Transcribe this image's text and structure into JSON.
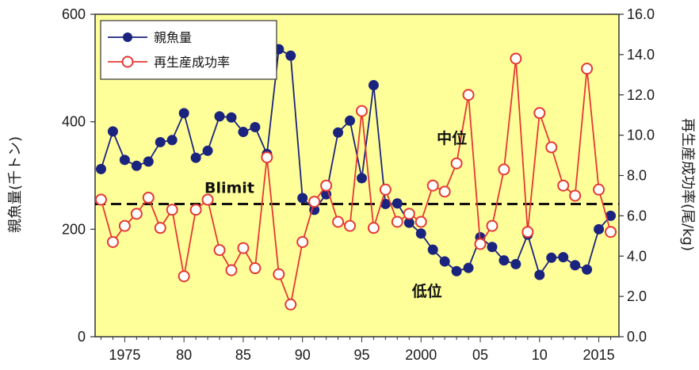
{
  "chart_data": {
    "type": "line",
    "title": "",
    "x_ticks": [
      "1975",
      "80",
      "85",
      "90",
      "95",
      "2000",
      "05",
      "10",
      "2015"
    ],
    "x_tick_values": [
      1975,
      1980,
      1985,
      1990,
      1995,
      2000,
      2005,
      2010,
      2015
    ],
    "xlim": [
      1972.5,
      2016.7
    ],
    "y_left": {
      "label": "親魚量(千トン)",
      "ticks": [
        "0",
        "200",
        "400",
        "600"
      ],
      "ylim": [
        0,
        600
      ]
    },
    "y_right": {
      "label": "再生産成功率(尾/kg)",
      "ticks": [
        "0.0",
        "2.0",
        "4.0",
        "6.0",
        "8.0",
        "10.0",
        "12.0",
        "14.0",
        "16.0"
      ],
      "ylim": [
        0,
        16
      ]
    },
    "grid": false,
    "legend_position": "top-left",
    "series": [
      {
        "name": "親魚量",
        "axis": "left",
        "color": "#1a237e",
        "marker": "filled-circle",
        "x": [
          1973,
          1974,
          1975,
          1976,
          1977,
          1978,
          1979,
          1980,
          1981,
          1982,
          1983,
          1984,
          1985,
          1986,
          1987,
          1988,
          1989,
          1990,
          1991,
          1992,
          1993,
          1994,
          1995,
          1996,
          1997,
          1998,
          1999,
          2000,
          2001,
          2002,
          2003,
          2004,
          2005,
          2006,
          2007,
          2008,
          2009,
          2010,
          2011,
          2012,
          2013,
          2014,
          2015,
          2016
        ],
        "values": [
          312,
          382,
          329,
          318,
          326,
          362,
          366,
          416,
          333,
          346,
          410,
          408,
          381,
          390,
          340,
          535,
          523,
          258,
          236,
          265,
          380,
          402,
          295,
          468,
          247,
          248,
          212,
          192,
          162,
          140,
          122,
          128,
          185,
          167,
          142,
          135,
          190,
          115,
          147,
          148,
          133,
          125,
          200,
          225
        ]
      },
      {
        "name": "再生産成功率",
        "axis": "right",
        "color": "#e53935",
        "marker": "open-circle",
        "x": [
          1973,
          1974,
          1975,
          1976,
          1977,
          1978,
          1979,
          1980,
          1981,
          1982,
          1983,
          1984,
          1985,
          1986,
          1987,
          1988,
          1989,
          1990,
          1991,
          1992,
          1993,
          1994,
          1995,
          1996,
          1997,
          1998,
          1999,
          2000,
          2001,
          2002,
          2003,
          2004,
          2005,
          2006,
          2007,
          2008,
          2009,
          2010,
          2011,
          2012,
          2013,
          2014,
          2015,
          2016
        ],
        "values": [
          6.8,
          4.7,
          5.5,
          6.1,
          6.9,
          5.4,
          6.3,
          3.0,
          6.3,
          6.8,
          4.3,
          3.3,
          4.4,
          3.4,
          8.9,
          3.1,
          1.6,
          4.7,
          6.7,
          7.5,
          5.7,
          5.5,
          11.2,
          5.4,
          7.3,
          5.7,
          6.1,
          5.7,
          7.5,
          7.2,
          8.6,
          12.0,
          4.6,
          5.5,
          8.3,
          13.8,
          5.2,
          11.1,
          9.4,
          7.5,
          7.0,
          13.3,
          7.3,
          5.2
        ]
      }
    ],
    "reference_line": {
      "label": "Blimit",
      "value": 247,
      "axis": "left",
      "style": "dashed"
    },
    "annotations": [
      {
        "text": "中位",
        "x": 2002.6,
        "y_right": 9.6
      },
      {
        "text": "低位",
        "x": 2000.5,
        "y_right": 2.0
      }
    ],
    "colors": {
      "plot_bg": "#ffff99",
      "axis": "#333333",
      "ref_line": "#111111"
    }
  }
}
